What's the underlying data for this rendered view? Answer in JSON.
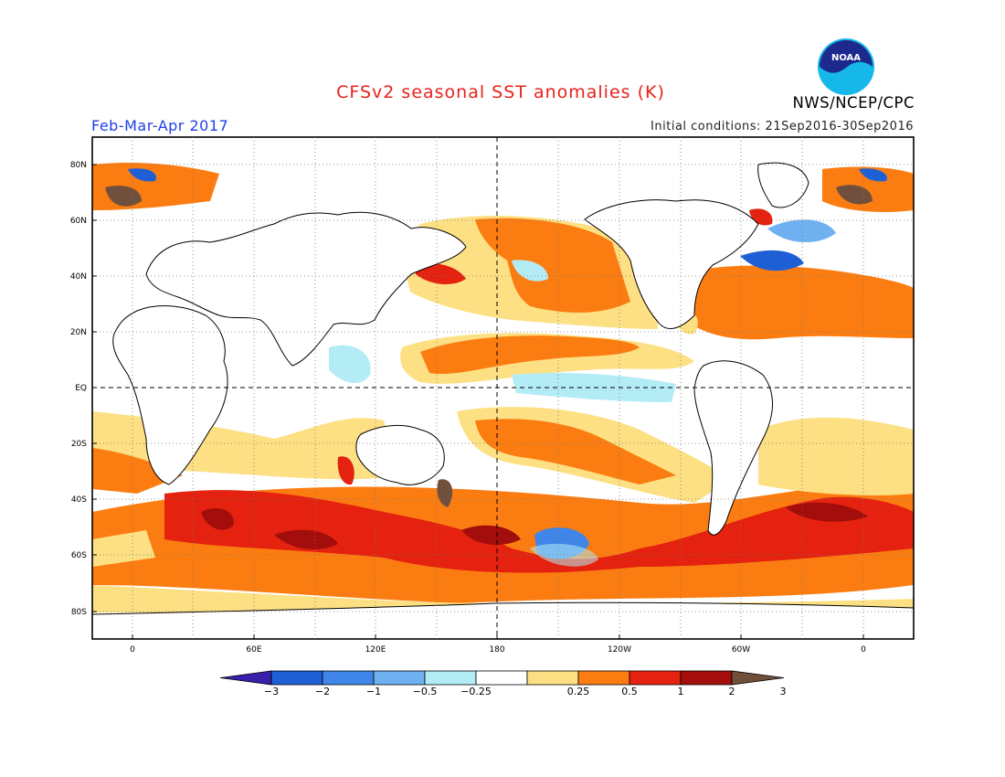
{
  "title": "CFSv2 seasonal SST anomalies (K)",
  "organization": "NWS/NCEP/CPC",
  "logo_text": "NOAA",
  "forecast_period": "Feb-Mar-Apr 2017",
  "initial_conditions": "Initial conditions: 21Sep2016-30Sep2016",
  "map": {
    "projection": "cylindrical equidistant",
    "lat_labels": [
      "80N",
      "60N",
      "40N",
      "20N",
      "EQ",
      "20S",
      "40S",
      "60S",
      "80S"
    ],
    "lon_labels": [
      "0",
      "60E",
      "120E",
      "180",
      "120W",
      "60W",
      "0"
    ],
    "land_color": "#ffffff",
    "reference_lines": [
      "Equator",
      "180"
    ]
  },
  "colorbar": {
    "labels": [
      "-3",
      "-2",
      "-1",
      "-0.5",
      "-0.25",
      "0.25",
      "0.5",
      "1",
      "2",
      "3"
    ],
    "colors": [
      "#3a1faa",
      "#1f5fd6",
      "#3f86e8",
      "#6fb0f0",
      "#b4ecf6",
      "#ffffff",
      "#fde083",
      "#fb7d12",
      "#e4220f",
      "#a30d0b",
      "#70503d"
    ],
    "units": "K"
  }
}
